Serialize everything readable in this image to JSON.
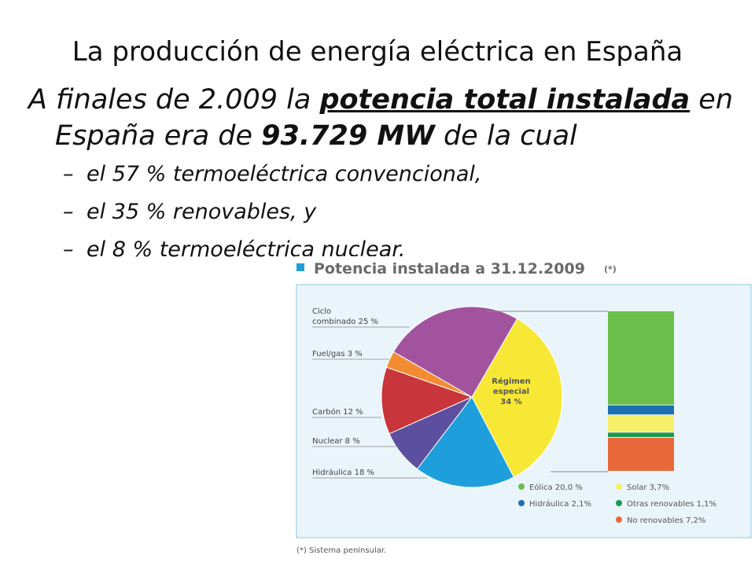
{
  "slide": {
    "title": "La producción de energía eléctrica en España",
    "main_text": {
      "part1": "A finales de 2.009 la ",
      "underlined_bold": "potencia total instalada",
      "part2": " en",
      "line2_part1": "España era de ",
      "bold_value": "93.729 MW",
      "line2_part2": " de la cual"
    },
    "sub_bullets": [
      "el 57 % termoeléctrica convencional,",
      "el 35 % renovables, y",
      "el 8 % termoeléctrica nuclear."
    ],
    "dash": "–"
  },
  "chart_data": {
    "type": "pie",
    "title": "Potencia instalada a 31.12.2009",
    "title_note": "(*)",
    "footnote": "(*) Sistema peninsular.",
    "slices": [
      {
        "label": "Régimen especial",
        "value": 34,
        "display": "Régimen especial 34%",
        "color": "#f6e834"
      },
      {
        "label": "Hidráulica",
        "value": 18,
        "display": "Hidráulica 18%",
        "color": "#1e9fdc"
      },
      {
        "label": "Nuclear",
        "value": 8,
        "display": "Nuclear 8%",
        "color": "#5c4f9f"
      },
      {
        "label": "Carbón",
        "value": 12,
        "display": "Carbón 12%",
        "color": "#c8353a"
      },
      {
        "label": "Fuel/gas",
        "value": 3,
        "display": "Fuel/gas 3%",
        "color": "#f28c33"
      },
      {
        "label": "Ciclo combinado",
        "value": 25,
        "display": "Ciclo combinado 25%",
        "color": "#a2539e"
      }
    ],
    "breakdown": {
      "parent": "Régimen especial",
      "segments": [
        {
          "label": "Eólica",
          "value": 20.0,
          "display": "Eólica 20,0 %",
          "color": "#6cbf4a"
        },
        {
          "label": "Hidráulica",
          "value": 2.1,
          "display": "Hidráulica 2,1%",
          "color": "#1c6fb0"
        },
        {
          "label": "Solar",
          "value": 3.7,
          "display": "Solar 3,7%",
          "color": "#f7ef6a"
        },
        {
          "label": "Otras renovables",
          "value": 1.1,
          "display": "Otras renovables 1,1%",
          "color": "#1f9a4c"
        },
        {
          "label": "No renovables",
          "value": 7.2,
          "display": "No renovables 7,2%",
          "color": "#e8683a"
        }
      ]
    },
    "labels": {
      "ciclo_line1": "Ciclo",
      "ciclo_line2": "combinado 25 %",
      "fuel": "Fuel/gas 3 %",
      "carbon": "Carbón 12 %",
      "nuclear": "Nuclear 8 %",
      "hidraulica": "Hidráulica 18 %",
      "regimen_line1": "Régimen",
      "regimen_line2": "especial",
      "regimen_line3": "34 %"
    }
  }
}
